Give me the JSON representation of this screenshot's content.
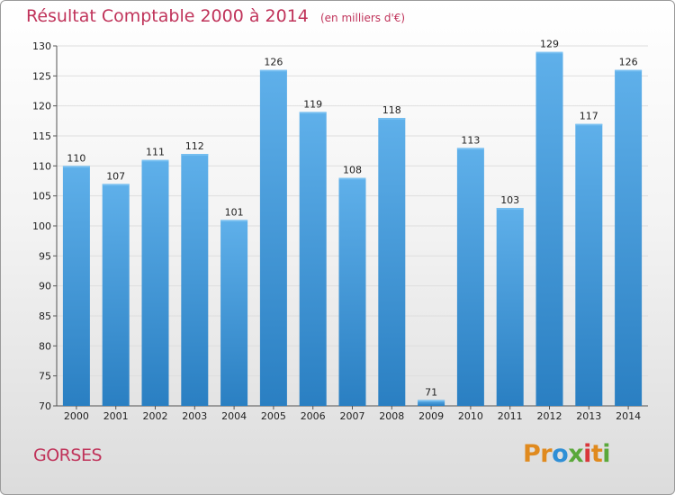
{
  "title": "Résultat Comptable 2000 à 2014",
  "subtitle": "(en milliers d'€)",
  "town": "GORSES",
  "logo": {
    "letters": [
      {
        "ch": "P",
        "color": "#e08a1e"
      },
      {
        "ch": "r",
        "color": "#e08a1e"
      },
      {
        "ch": "o",
        "color": "#2f8fd6"
      },
      {
        "ch": "x",
        "color": "#5aa83a"
      },
      {
        "ch": "i",
        "color": "#d9373b"
      },
      {
        "ch": "t",
        "color": "#e08a1e"
      },
      {
        "ch": "i",
        "color": "#5aa83a"
      }
    ]
  },
  "colors": {
    "bar_light": "#5fb0ea",
    "bar_dark": "#2a7fc2",
    "accent": "#c0335a"
  },
  "chart_data": {
    "type": "bar",
    "categories": [
      "2000",
      "2001",
      "2002",
      "2003",
      "2004",
      "2005",
      "2006",
      "2007",
      "2008",
      "2009",
      "2010",
      "2011",
      "2012",
      "2013",
      "2014"
    ],
    "values": [
      110,
      107,
      111,
      112,
      101,
      126,
      119,
      108,
      118,
      71,
      113,
      103,
      129,
      117,
      126
    ],
    "ylim": [
      70,
      130
    ],
    "yticks": [
      70,
      75,
      80,
      85,
      90,
      95,
      100,
      105,
      110,
      115,
      120,
      125,
      130
    ],
    "grid": true,
    "legend": "none"
  }
}
